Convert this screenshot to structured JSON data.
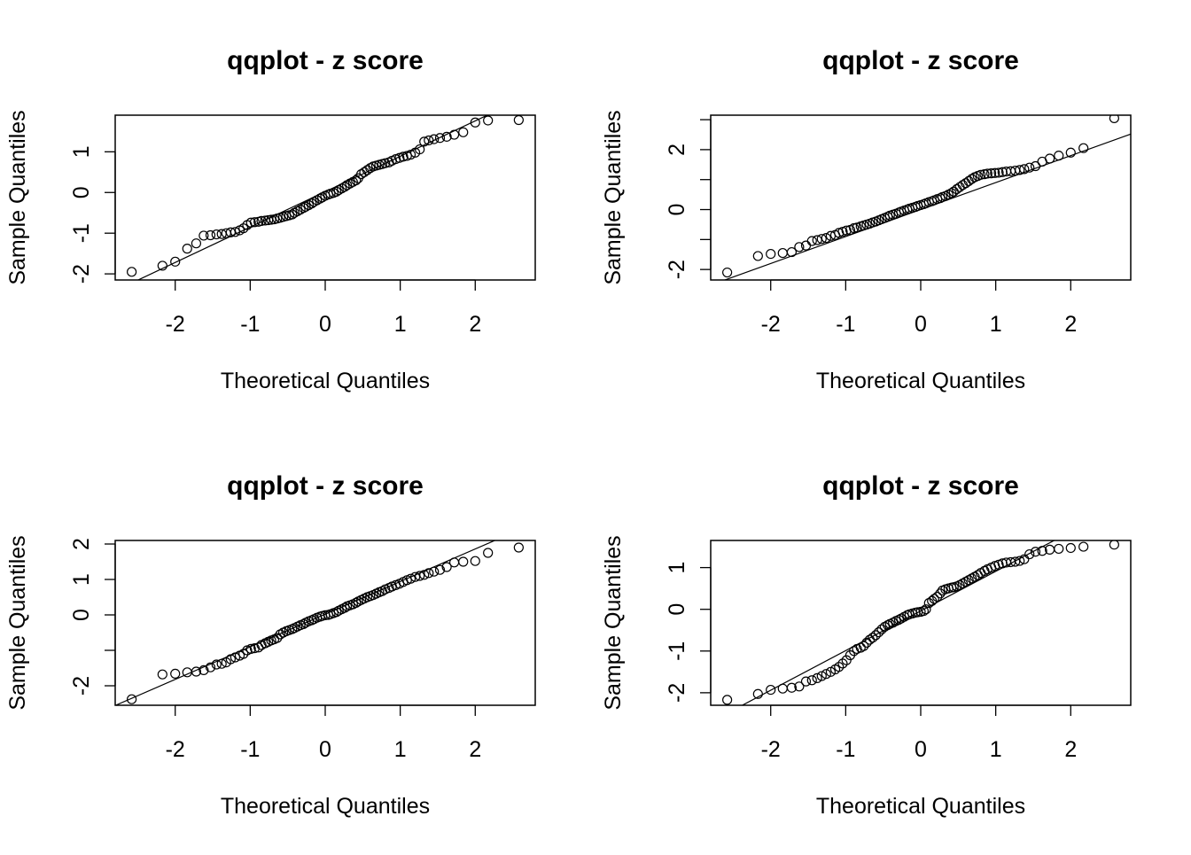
{
  "chart_data": [
    {
      "type": "scatter",
      "title": "qqplot - z score",
      "xlabel": "Theoretical Quantiles",
      "ylabel": "Sample Quantiles",
      "xlim": [
        -2.8,
        2.8
      ],
      "ylim": [
        -2.15,
        1.9
      ],
      "x_ticks": [
        -2,
        -1,
        0,
        1,
        2
      ],
      "x_tick_labels": [
        "-2",
        "-1",
        "0",
        "1",
        "2"
      ],
      "y_ticks": [
        -2,
        -1,
        0,
        1
      ],
      "y_tick_labels": [
        "-2",
        "-1",
        "0",
        "1"
      ],
      "grid": false,
      "legend": "none",
      "reference_line": {
        "intercept": 0.02,
        "slope": 0.87
      },
      "points": {
        "x": [
          -2.58,
          -2.17,
          -2.0,
          -1.84,
          -1.72,
          -1.62,
          -1.53,
          -1.45,
          -1.38,
          -1.32,
          -1.26,
          -1.2,
          -1.14,
          -1.09,
          -1.04,
          -0.99,
          -0.94,
          -0.89,
          -0.85,
          -0.8,
          -0.76,
          -0.72,
          -0.68,
          -0.64,
          -0.6,
          -0.56,
          -0.52,
          -0.48,
          -0.44,
          -0.41,
          -0.37,
          -0.33,
          -0.29,
          -0.26,
          -0.22,
          -0.18,
          -0.15,
          -0.11,
          -0.07,
          -0.04,
          0.0,
          0.04,
          0.07,
          0.11,
          0.15,
          0.18,
          0.22,
          0.26,
          0.29,
          0.33,
          0.37,
          0.41,
          0.44,
          0.48,
          0.52,
          0.56,
          0.6,
          0.64,
          0.68,
          0.72,
          0.76,
          0.8,
          0.85,
          0.89,
          0.94,
          0.99,
          1.04,
          1.09,
          1.14,
          1.2,
          1.26,
          1.32,
          1.38,
          1.45,
          1.53,
          1.62,
          1.72,
          1.84,
          2.0,
          2.17,
          2.58
        ],
        "y": [
          -1.95,
          -1.8,
          -1.7,
          -1.38,
          -1.25,
          -1.06,
          -1.05,
          -1.03,
          -1.02,
          -1.0,
          -0.98,
          -0.97,
          -0.93,
          -0.88,
          -0.8,
          -0.74,
          -0.73,
          -0.72,
          -0.7,
          -0.69,
          -0.68,
          -0.67,
          -0.66,
          -0.64,
          -0.62,
          -0.6,
          -0.58,
          -0.56,
          -0.54,
          -0.5,
          -0.46,
          -0.42,
          -0.38,
          -0.35,
          -0.31,
          -0.27,
          -0.23,
          -0.19,
          -0.15,
          -0.12,
          -0.08,
          -0.05,
          -0.03,
          -0.01,
          0.02,
          0.06,
          0.1,
          0.14,
          0.18,
          0.22,
          0.26,
          0.3,
          0.35,
          0.45,
          0.5,
          0.55,
          0.6,
          0.64,
          0.66,
          0.68,
          0.7,
          0.72,
          0.74,
          0.78,
          0.82,
          0.85,
          0.88,
          0.9,
          0.93,
          0.98,
          1.06,
          1.25,
          1.28,
          1.31,
          1.34,
          1.37,
          1.42,
          1.48,
          1.72,
          1.77,
          1.78
        ]
      }
    },
    {
      "type": "scatter",
      "title": "qqplot - z score",
      "xlabel": "Theoretical Quantiles",
      "ylabel": "Sample Quantiles",
      "xlim": [
        -2.8,
        2.8
      ],
      "ylim": [
        -2.35,
        3.15
      ],
      "x_ticks": [
        -2,
        -1,
        0,
        1,
        2
      ],
      "x_tick_labels": [
        "-2",
        "-1",
        "0",
        "1",
        "2"
      ],
      "y_ticks": [
        -2,
        -1,
        0,
        1,
        2,
        3
      ],
      "y_tick_labels": [
        "-2",
        "",
        "0",
        "",
        "2",
        ""
      ],
      "grid": false,
      "legend": "none",
      "reference_line": {
        "intercept": 0.0,
        "slope": 0.9
      },
      "points": {
        "x": [
          -2.58,
          -2.17,
          -2.0,
          -1.84,
          -1.72,
          -1.62,
          -1.53,
          -1.45,
          -1.38,
          -1.32,
          -1.26,
          -1.2,
          -1.14,
          -1.09,
          -1.04,
          -0.99,
          -0.94,
          -0.89,
          -0.85,
          -0.8,
          -0.76,
          -0.72,
          -0.68,
          -0.64,
          -0.6,
          -0.56,
          -0.52,
          -0.48,
          -0.44,
          -0.41,
          -0.37,
          -0.33,
          -0.29,
          -0.26,
          -0.22,
          -0.18,
          -0.15,
          -0.11,
          -0.07,
          -0.04,
          0.0,
          0.04,
          0.07,
          0.11,
          0.15,
          0.18,
          0.22,
          0.26,
          0.29,
          0.33,
          0.37,
          0.41,
          0.44,
          0.48,
          0.52,
          0.56,
          0.6,
          0.64,
          0.68,
          0.72,
          0.76,
          0.8,
          0.85,
          0.89,
          0.94,
          0.99,
          1.04,
          1.09,
          1.14,
          1.2,
          1.26,
          1.32,
          1.38,
          1.45,
          1.53,
          1.62,
          1.72,
          1.84,
          2.0,
          2.17,
          2.58
        ],
        "y": [
          -2.1,
          -1.55,
          -1.48,
          -1.45,
          -1.42,
          -1.25,
          -1.2,
          -1.05,
          -1.02,
          -0.98,
          -0.95,
          -0.88,
          -0.85,
          -0.78,
          -0.74,
          -0.7,
          -0.68,
          -0.62,
          -0.6,
          -0.56,
          -0.53,
          -0.5,
          -0.47,
          -0.43,
          -0.4,
          -0.36,
          -0.32,
          -0.28,
          -0.24,
          -0.2,
          -0.17,
          -0.14,
          -0.1,
          -0.07,
          -0.03,
          0.0,
          0.03,
          0.06,
          0.09,
          0.12,
          0.15,
          0.18,
          0.21,
          0.25,
          0.28,
          0.31,
          0.35,
          0.38,
          0.42,
          0.45,
          0.5,
          0.55,
          0.6,
          0.68,
          0.75,
          0.82,
          0.88,
          0.95,
          1.02,
          1.08,
          1.12,
          1.16,
          1.18,
          1.2,
          1.21,
          1.22,
          1.23,
          1.25,
          1.27,
          1.28,
          1.3,
          1.32,
          1.35,
          1.4,
          1.45,
          1.6,
          1.7,
          1.8,
          1.9,
          2.05,
          3.05
        ]
      }
    },
    {
      "type": "scatter",
      "title": "qqplot - z score",
      "xlabel": "Theoretical Quantiles",
      "ylabel": "Sample Quantiles",
      "xlim": [
        -2.8,
        2.8
      ],
      "ylim": [
        -2.55,
        2.1
      ],
      "x_ticks": [
        -2,
        -1,
        0,
        1,
        2
      ],
      "x_tick_labels": [
        "-2",
        "-1",
        "0",
        "1",
        "2"
      ],
      "y_ticks": [
        -2,
        -1,
        0,
        1,
        2
      ],
      "y_tick_labels": [
        "-2",
        "",
        "0",
        "1",
        "2"
      ],
      "grid": false,
      "legend": "none",
      "reference_line": {
        "intercept": 0.02,
        "slope": 0.92
      },
      "points": {
        "x": [
          -2.58,
          -2.17,
          -2.0,
          -1.84,
          -1.72,
          -1.62,
          -1.53,
          -1.45,
          -1.38,
          -1.32,
          -1.26,
          -1.2,
          -1.14,
          -1.09,
          -1.04,
          -0.99,
          -0.94,
          -0.89,
          -0.85,
          -0.8,
          -0.76,
          -0.72,
          -0.68,
          -0.64,
          -0.6,
          -0.56,
          -0.52,
          -0.48,
          -0.44,
          -0.41,
          -0.37,
          -0.33,
          -0.29,
          -0.26,
          -0.22,
          -0.18,
          -0.15,
          -0.11,
          -0.07,
          -0.04,
          0.0,
          0.04,
          0.07,
          0.11,
          0.15,
          0.18,
          0.22,
          0.26,
          0.29,
          0.33,
          0.37,
          0.41,
          0.44,
          0.48,
          0.52,
          0.56,
          0.6,
          0.64,
          0.68,
          0.72,
          0.76,
          0.8,
          0.85,
          0.89,
          0.94,
          0.99,
          1.04,
          1.09,
          1.14,
          1.2,
          1.26,
          1.32,
          1.38,
          1.45,
          1.53,
          1.62,
          1.72,
          1.84,
          2.0,
          2.17,
          2.58
        ],
        "y": [
          -2.38,
          -1.68,
          -1.66,
          -1.62,
          -1.6,
          -1.56,
          -1.48,
          -1.4,
          -1.38,
          -1.34,
          -1.25,
          -1.2,
          -1.15,
          -1.1,
          -1.0,
          -0.96,
          -0.94,
          -0.92,
          -0.85,
          -0.8,
          -0.76,
          -0.72,
          -0.69,
          -0.65,
          -0.55,
          -0.5,
          -0.46,
          -0.43,
          -0.4,
          -0.37,
          -0.33,
          -0.29,
          -0.26,
          -0.22,
          -0.18,
          -0.15,
          -0.12,
          -0.08,
          -0.05,
          -0.03,
          -0.01,
          0.0,
          0.02,
          0.05,
          0.08,
          0.12,
          0.16,
          0.2,
          0.24,
          0.27,
          0.3,
          0.34,
          0.38,
          0.42,
          0.46,
          0.5,
          0.53,
          0.56,
          0.6,
          0.64,
          0.67,
          0.72,
          0.76,
          0.8,
          0.84,
          0.88,
          0.93,
          0.98,
          1.02,
          1.07,
          1.1,
          1.13,
          1.18,
          1.22,
          1.27,
          1.35,
          1.48,
          1.5,
          1.52,
          1.75,
          1.9
        ]
      }
    },
    {
      "type": "scatter",
      "title": "qqplot - z score",
      "xlabel": "Theoretical Quantiles",
      "ylabel": "Sample Quantiles",
      "xlim": [
        -2.8,
        2.8
      ],
      "ylim": [
        -2.3,
        1.65
      ],
      "x_ticks": [
        -2,
        -1,
        0,
        1,
        2
      ],
      "x_tick_labels": [
        "-2",
        "-1",
        "0",
        "1",
        "2"
      ],
      "y_ticks": [
        -2,
        -1,
        0,
        1
      ],
      "y_tick_labels": [
        "-2",
        "-1",
        "0",
        "1"
      ],
      "grid": false,
      "legend": "none",
      "reference_line": {
        "intercept": -0.04,
        "slope": 0.95
      },
      "points": {
        "x": [
          -2.58,
          -2.17,
          -2.0,
          -1.84,
          -1.72,
          -1.62,
          -1.53,
          -1.45,
          -1.38,
          -1.32,
          -1.26,
          -1.2,
          -1.14,
          -1.09,
          -1.04,
          -0.99,
          -0.94,
          -0.89,
          -0.85,
          -0.8,
          -0.76,
          -0.72,
          -0.68,
          -0.64,
          -0.6,
          -0.56,
          -0.52,
          -0.48,
          -0.44,
          -0.41,
          -0.37,
          -0.33,
          -0.29,
          -0.26,
          -0.22,
          -0.18,
          -0.15,
          -0.11,
          -0.07,
          -0.04,
          0.0,
          0.04,
          0.07,
          0.11,
          0.15,
          0.18,
          0.22,
          0.26,
          0.29,
          0.33,
          0.37,
          0.41,
          0.44,
          0.48,
          0.52,
          0.56,
          0.6,
          0.64,
          0.68,
          0.72,
          0.76,
          0.8,
          0.85,
          0.89,
          0.94,
          0.99,
          1.04,
          1.09,
          1.14,
          1.2,
          1.26,
          1.32,
          1.38,
          1.45,
          1.53,
          1.62,
          1.72,
          1.84,
          2.0,
          2.17,
          2.58
        ],
        "y": [
          -2.17,
          -2.03,
          -1.93,
          -1.9,
          -1.88,
          -1.85,
          -1.73,
          -1.7,
          -1.65,
          -1.6,
          -1.55,
          -1.5,
          -1.44,
          -1.38,
          -1.3,
          -1.22,
          -1.1,
          -1.0,
          -0.95,
          -0.92,
          -0.88,
          -0.8,
          -0.73,
          -0.68,
          -0.62,
          -0.55,
          -0.48,
          -0.42,
          -0.38,
          -0.35,
          -0.32,
          -0.28,
          -0.25,
          -0.22,
          -0.18,
          -0.14,
          -0.12,
          -0.1,
          -0.08,
          -0.07,
          -0.06,
          -0.04,
          0.0,
          0.15,
          0.2,
          0.25,
          0.3,
          0.38,
          0.45,
          0.48,
          0.5,
          0.52,
          0.53,
          0.55,
          0.58,
          0.62,
          0.66,
          0.7,
          0.74,
          0.78,
          0.82,
          0.87,
          0.92,
          0.96,
          1.0,
          1.04,
          1.07,
          1.1,
          1.12,
          1.13,
          1.14,
          1.16,
          1.2,
          1.32,
          1.38,
          1.4,
          1.43,
          1.45,
          1.47,
          1.5,
          1.55
        ]
      }
    }
  ]
}
